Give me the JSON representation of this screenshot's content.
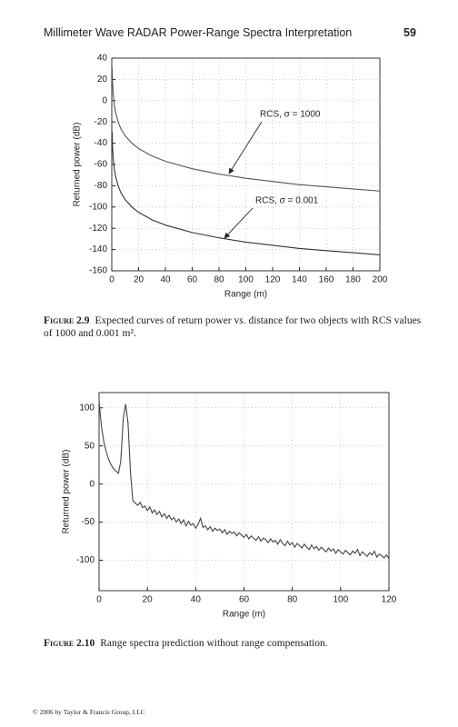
{
  "header": {
    "title": "Millimeter Wave RADAR Power-Range Spectra Interpretation",
    "page": "59"
  },
  "chart_data": [
    {
      "type": "line",
      "ylabel": "Returned power (dB)",
      "xlabel": "Range (m)",
      "x": [
        0.25,
        0.5,
        1,
        2,
        3,
        5,
        7,
        10,
        15,
        20,
        30,
        40,
        60,
        80,
        100,
        120,
        140,
        160,
        180,
        200
      ],
      "series": [
        {
          "name": "RCS, σ = 1000",
          "color": "#555555",
          "values": [
            31,
            19,
            7,
            -5,
            -12,
            -21,
            -27,
            -33,
            -40,
            -45,
            -52,
            -57,
            -64,
            -69,
            -73,
            -76,
            -79,
            -81,
            -83,
            -85
          ]
        },
        {
          "name": "RCS, σ = 0.001",
          "color": "#333333",
          "values": [
            -29,
            -41,
            -53,
            -65,
            -72,
            -81,
            -87,
            -93,
            -100,
            -105,
            -112,
            -117,
            -124,
            -129,
            -133,
            -136,
            -139,
            -141,
            -143,
            -145
          ]
        }
      ],
      "xlim": [
        0,
        200
      ],
      "xticks": [
        0,
        20,
        40,
        60,
        80,
        100,
        120,
        140,
        160,
        180,
        200
      ],
      "ylim": [
        -160,
        40
      ],
      "yticks": [
        -160,
        -140,
        -120,
        -100,
        -80,
        -60,
        -40,
        -20,
        0,
        20,
        40
      ],
      "grid": true
    },
    {
      "type": "line",
      "ylabel": "Returned power (dB)",
      "xlabel": "Range (m)",
      "x": [
        0,
        1,
        2,
        3,
        4,
        5,
        6,
        7,
        8,
        9,
        10,
        11,
        12,
        13,
        14,
        15,
        16,
        17,
        18,
        19,
        20,
        21,
        22,
        23,
        24,
        25,
        26,
        27,
        28,
        29,
        30,
        31,
        32,
        33,
        34,
        35,
        36,
        37,
        38,
        39,
        40,
        41,
        42,
        43,
        44,
        45,
        46,
        47,
        48,
        49,
        50,
        51,
        52,
        53,
        54,
        55,
        56,
        57,
        58,
        59,
        60,
        61,
        62,
        63,
        64,
        65,
        66,
        67,
        68,
        69,
        70,
        71,
        72,
        73,
        74,
        75,
        76,
        77,
        78,
        79,
        80,
        81,
        82,
        83,
        84,
        85,
        86,
        87,
        88,
        89,
        90,
        91,
        92,
        93,
        94,
        95,
        96,
        97,
        98,
        99,
        100,
        101,
        102,
        103,
        104,
        105,
        106,
        107,
        108,
        109,
        110,
        111,
        112,
        113,
        114,
        115,
        116,
        117,
        118,
        119,
        120
      ],
      "series": [
        {
          "color": "#444444",
          "values": [
            108,
            75,
            55,
            42,
            32,
            25,
            20,
            17,
            14,
            30,
            85,
            105,
            80,
            15,
            -22,
            -25,
            -28,
            -24,
            -31,
            -29,
            -35,
            -30,
            -38,
            -34,
            -40,
            -36,
            -43,
            -39,
            -45,
            -41,
            -47,
            -44,
            -50,
            -46,
            -52,
            -47,
            -55,
            -49,
            -54,
            -52,
            -58,
            -53,
            -45,
            -57,
            -55,
            -60,
            -56,
            -62,
            -58,
            -61,
            -59,
            -64,
            -60,
            -66,
            -62,
            -65,
            -63,
            -68,
            -64,
            -67,
            -70,
            -66,
            -72,
            -68,
            -71,
            -74,
            -69,
            -75,
            -71,
            -73,
            -77,
            -72,
            -76,
            -74,
            -79,
            -73,
            -78,
            -81,
            -75,
            -80,
            -77,
            -83,
            -78,
            -81,
            -84,
            -79,
            -83,
            -86,
            -80,
            -85,
            -82,
            -87,
            -83,
            -86,
            -89,
            -84,
            -88,
            -85,
            -91,
            -86,
            -89,
            -92,
            -87,
            -90,
            -93,
            -88,
            -91,
            -86,
            -94,
            -89,
            -92,
            -95,
            -90,
            -93,
            -88,
            -96,
            -92,
            -94,
            -97,
            -93,
            -98
          ]
        }
      ],
      "xlim": [
        0,
        120
      ],
      "xticks": [
        0,
        20,
        40,
        60,
        80,
        100,
        120
      ],
      "ylim": [
        -140,
        120
      ],
      "yticks": [
        -100,
        -50,
        0,
        50,
        100
      ],
      "grid": true
    }
  ],
  "captions": [
    {
      "label": "Figure 2.9",
      "text": "Expected curves of return power vs. distance for two objects with RCS values of 1000 and 0.001 m²."
    },
    {
      "label": "Figure 2.10",
      "text": "Range spectra prediction without range compensation."
    }
  ],
  "footer": "© 2006 by Taylor & Francis Group, LLC"
}
